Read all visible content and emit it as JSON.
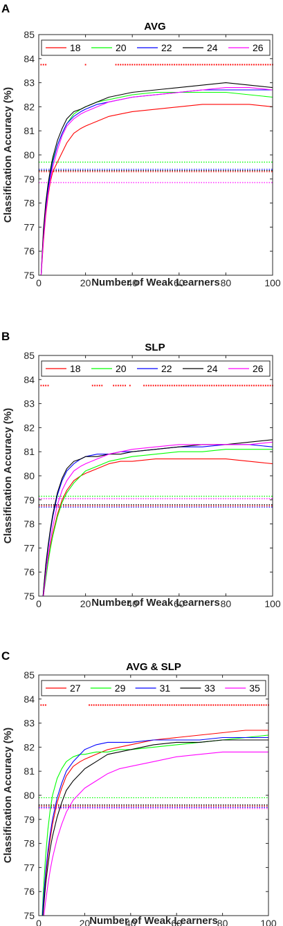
{
  "chart_data": [
    {
      "panel": "A",
      "title": "AVG",
      "type": "line",
      "xlabel": "Number of Weak Learners",
      "ylabel": "Classification Accuracy (%)",
      "xlim": [
        0,
        100
      ],
      "ylim": [
        75,
        85
      ],
      "xticks": [
        "0",
        "20",
        "40",
        "60",
        "80",
        "100"
      ],
      "yticks": [
        "75",
        "76",
        "77",
        "78",
        "79",
        "80",
        "81",
        "82",
        "83",
        "84",
        "85"
      ],
      "grid": false,
      "legend_position": "top, horizontal",
      "x": [
        1,
        2,
        3,
        4,
        5,
        6,
        8,
        10,
        12,
        15,
        18,
        20,
        25,
        30,
        35,
        40,
        50,
        60,
        70,
        80,
        90,
        100
      ],
      "series": [
        {
          "name": "18",
          "color": "#ff0000",
          "values": [
            75.0,
            76.4,
            77.5,
            78.3,
            78.9,
            79.3,
            79.7,
            80.1,
            80.5,
            80.9,
            81.1,
            81.2,
            81.4,
            81.6,
            81.7,
            81.8,
            81.9,
            82.0,
            82.1,
            82.1,
            82.1,
            82.0
          ],
          "baseline": 79.3
        },
        {
          "name": "20",
          "color": "#00ff00",
          "values": [
            75.0,
            76.8,
            77.9,
            78.7,
            79.3,
            79.8,
            80.4,
            80.9,
            81.3,
            81.7,
            81.9,
            82.0,
            82.2,
            82.3,
            82.4,
            82.5,
            82.6,
            82.6,
            82.6,
            82.6,
            82.5,
            82.4
          ],
          "baseline": 79.7
        },
        {
          "name": "22",
          "color": "#0000ff",
          "values": [
            75.0,
            76.7,
            77.8,
            78.6,
            79.2,
            79.7,
            80.4,
            80.9,
            81.3,
            81.6,
            81.8,
            81.9,
            82.1,
            82.2,
            82.3,
            82.4,
            82.5,
            82.6,
            82.7,
            82.7,
            82.7,
            82.7
          ],
          "baseline": 79.4
        },
        {
          "name": "24",
          "color": "#000000",
          "values": [
            75.0,
            76.9,
            78.0,
            78.8,
            79.4,
            79.9,
            80.6,
            81.1,
            81.5,
            81.8,
            81.9,
            82.0,
            82.2,
            82.4,
            82.5,
            82.6,
            82.7,
            82.8,
            82.9,
            83.0,
            82.9,
            82.8
          ],
          "baseline": 79.35
        },
        {
          "name": "26",
          "color": "#ff00ff",
          "values": [
            75.0,
            76.5,
            77.6,
            78.4,
            79.0,
            79.5,
            80.2,
            80.8,
            81.2,
            81.5,
            81.7,
            81.8,
            82.0,
            82.2,
            82.3,
            82.4,
            82.5,
            82.6,
            82.7,
            82.8,
            82.8,
            82.7
          ],
          "baseline": 78.85
        }
      ],
      "significance": {
        "y": 83.75,
        "color": "#ff0000",
        "points": [
          1,
          2,
          3,
          20
        ],
        "range": [
          33,
          100
        ]
      }
    },
    {
      "panel": "B",
      "title": "SLP",
      "type": "line",
      "xlabel": "Number of Weak Learners",
      "ylabel": "Classification Accuracy (%)",
      "xlim": [
        0,
        100
      ],
      "ylim": [
        75,
        85
      ],
      "xticks": [
        "0",
        "20",
        "40",
        "60",
        "80",
        "100"
      ],
      "yticks": [
        "75",
        "76",
        "77",
        "78",
        "79",
        "80",
        "81",
        "82",
        "83",
        "84",
        "85"
      ],
      "grid": false,
      "legend_position": "top, horizontal",
      "x": [
        1,
        2,
        3,
        4,
        5,
        6,
        8,
        10,
        12,
        15,
        18,
        20,
        25,
        30,
        35,
        40,
        50,
        60,
        70,
        80,
        90,
        100
      ],
      "series": [
        {
          "name": "18",
          "color": "#ff0000",
          "values": [
            74.0,
            75.0,
            75.8,
            76.5,
            77.1,
            77.6,
            78.4,
            79.0,
            79.4,
            79.8,
            80.0,
            80.1,
            80.3,
            80.5,
            80.6,
            80.6,
            80.7,
            80.7,
            80.7,
            80.7,
            80.6,
            80.5
          ],
          "baseline": 78.75
        },
        {
          "name": "20",
          "color": "#00ff00",
          "values": [
            74.0,
            75.0,
            75.7,
            76.4,
            77.0,
            77.5,
            78.3,
            78.9,
            79.3,
            79.7,
            80.0,
            80.2,
            80.4,
            80.6,
            80.7,
            80.8,
            80.9,
            81.0,
            81.0,
            81.1,
            81.1,
            81.1
          ],
          "baseline": 79.15
        },
        {
          "name": "22",
          "color": "#0000ff",
          "values": [
            74.0,
            75.2,
            76.2,
            77.0,
            77.7,
            78.3,
            79.2,
            79.8,
            80.2,
            80.5,
            80.7,
            80.8,
            80.9,
            80.9,
            81.0,
            81.0,
            81.1,
            81.2,
            81.2,
            81.3,
            81.3,
            81.2
          ],
          "baseline": 78.7
        },
        {
          "name": "24",
          "color": "#000000",
          "values": [
            74.0,
            75.2,
            76.3,
            77.1,
            77.8,
            78.4,
            79.3,
            79.9,
            80.3,
            80.6,
            80.7,
            80.8,
            80.8,
            80.9,
            80.9,
            81.0,
            81.1,
            81.2,
            81.3,
            81.3,
            81.4,
            81.5
          ],
          "baseline": 78.8
        },
        {
          "name": "26",
          "color": "#ff00ff",
          "values": [
            74.0,
            75.0,
            75.9,
            76.7,
            77.3,
            77.9,
            78.8,
            79.4,
            79.8,
            80.2,
            80.4,
            80.5,
            80.7,
            80.9,
            81.0,
            81.1,
            81.2,
            81.3,
            81.3,
            81.3,
            81.3,
            81.4
          ],
          "baseline": 79.05
        }
      ],
      "significance": {
        "y": 83.75,
        "color": "#ff0000",
        "points": [
          1,
          2,
          3,
          4,
          23,
          24,
          25,
          26,
          27,
          32,
          33,
          34,
          35,
          36,
          37,
          39,
          45,
          46,
          47
        ],
        "range": [
          48,
          100
        ]
      }
    },
    {
      "panel": "C",
      "title": "AVG & SLP",
      "type": "line",
      "xlabel": "Number of Weak Learners",
      "ylabel": "Classification Accuracy (%)",
      "xlim": [
        0,
        100
      ],
      "ylim": [
        75,
        85
      ],
      "xticks": [
        "0",
        "20",
        "40",
        "60",
        "80",
        "100"
      ],
      "yticks": [
        "75",
        "76",
        "77",
        "78",
        "79",
        "80",
        "81",
        "82",
        "83",
        "84",
        "85"
      ],
      "grid": false,
      "legend_position": "top, horizontal",
      "x": [
        1,
        2,
        3,
        4,
        5,
        6,
        8,
        10,
        12,
        15,
        18,
        20,
        25,
        30,
        35,
        40,
        50,
        60,
        70,
        80,
        90,
        100
      ],
      "series": [
        {
          "name": "27",
          "color": "#ff0000",
          "values": [
            74.0,
            75.4,
            76.6,
            77.5,
            78.2,
            78.8,
            79.7,
            80.3,
            80.8,
            81.2,
            81.4,
            81.5,
            81.7,
            81.9,
            82.0,
            82.1,
            82.3,
            82.4,
            82.5,
            82.6,
            82.7,
            82.7
          ],
          "baseline": 79.55
        },
        {
          "name": "29",
          "color": "#00ff00",
          "values": [
            74.0,
            76.0,
            77.5,
            78.6,
            79.4,
            80.0,
            80.7,
            81.1,
            81.4,
            81.6,
            81.7,
            81.7,
            81.8,
            81.8,
            81.9,
            81.9,
            82.0,
            82.1,
            82.2,
            82.3,
            82.4,
            82.5
          ],
          "baseline": 79.9
        },
        {
          "name": "31",
          "color": "#0000ff",
          "values": [
            74.0,
            75.6,
            76.8,
            77.7,
            78.4,
            79.0,
            79.9,
            80.5,
            81.0,
            81.4,
            81.7,
            81.9,
            82.1,
            82.2,
            82.2,
            82.2,
            82.3,
            82.3,
            82.3,
            82.4,
            82.4,
            82.4
          ],
          "baseline": 79.5
        },
        {
          "name": "33",
          "color": "#000000",
          "values": [
            74.0,
            75.2,
            76.3,
            77.1,
            77.8,
            78.3,
            79.1,
            79.7,
            80.2,
            80.6,
            80.9,
            81.1,
            81.4,
            81.7,
            81.8,
            81.9,
            82.1,
            82.2,
            82.2,
            82.3,
            82.3,
            82.3
          ],
          "baseline": 79.6
        },
        {
          "name": "35",
          "color": "#ff00ff",
          "values": [
            74.0,
            74.8,
            75.6,
            76.3,
            76.9,
            77.4,
            78.2,
            78.8,
            79.3,
            79.8,
            80.1,
            80.3,
            80.6,
            80.9,
            81.1,
            81.2,
            81.4,
            81.6,
            81.7,
            81.8,
            81.8,
            81.8
          ],
          "baseline": 79.45
        }
      ],
      "significance": {
        "y": 83.75,
        "color": "#ff0000",
        "points": [
          1,
          2,
          3
        ],
        "range": [
          22,
          100
        ]
      }
    }
  ]
}
